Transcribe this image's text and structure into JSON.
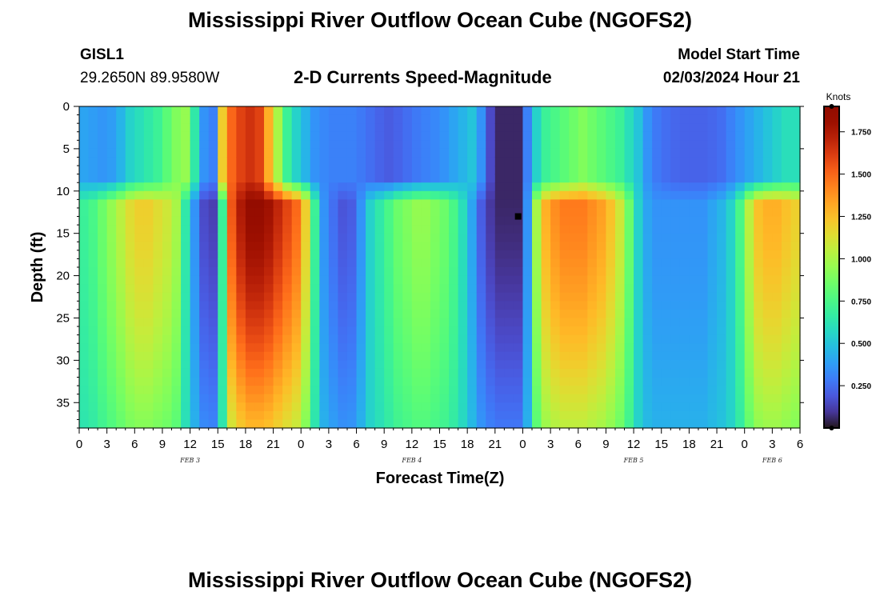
{
  "header": {
    "title": "Mississippi River Outflow Ocean Cube (NGOFS2)",
    "station": "GISL1",
    "coords": "29.2650N  89.9580W",
    "subtitle": "2-D Currents Speed-Magnitude",
    "model_start_label": "Model Start Time",
    "model_start_value": "02/03/2024 Hour 21"
  },
  "footer": {
    "title": "Mississippi River Outflow Ocean Cube (NGOFS2)"
  },
  "chart_data": {
    "type": "heatmap",
    "xlabel": "Forecast Time(Z)",
    "ylabel": "Depth (ft)",
    "x_tick_labels": [
      "0",
      "3",
      "6",
      "9",
      "12",
      "15",
      "18",
      "21",
      "0",
      "3",
      "6",
      "9",
      "12",
      "15",
      "18",
      "21",
      "0",
      "3",
      "6",
      "9",
      "12",
      "15",
      "18",
      "21",
      "0",
      "3",
      "6"
    ],
    "x_range_hours": [
      0,
      78
    ],
    "day_labels": [
      {
        "text": "FEB 3",
        "hour": 12
      },
      {
        "text": "FEB 4",
        "hour": 36
      },
      {
        "text": "FEB 5",
        "hour": 60
      },
      {
        "text": "FEB 6",
        "hour": 75
      }
    ],
    "y_ticks": [
      0,
      5,
      10,
      15,
      20,
      25,
      30,
      35
    ],
    "ylim": [
      0,
      38
    ],
    "y_inverted": true,
    "colorbar": {
      "unit": "Knots",
      "range": [
        0,
        1.9
      ],
      "tick_labels": [
        "0.250",
        "0.500",
        "0.750",
        "1.000",
        "1.250",
        "1.500",
        "1.750"
      ],
      "ticks": [
        0.25,
        0.5,
        0.75,
        1.0,
        1.25,
        1.5,
        1.75
      ],
      "colormap": "turbo"
    },
    "time_bins_hours": 78,
    "depth_bins": 38,
    "surface_break_depth_ft": 10,
    "surface_speed_knots": [
      0.4,
      0.38,
      0.36,
      0.38,
      0.45,
      0.55,
      0.6,
      0.65,
      0.7,
      0.8,
      0.9,
      0.95,
      0.65,
      0.35,
      0.3,
      1.2,
      1.5,
      1.6,
      1.65,
      1.6,
      1.3,
      1.0,
      0.7,
      0.55,
      0.45,
      0.35,
      0.32,
      0.3,
      0.3,
      0.3,
      0.28,
      0.25,
      0.22,
      0.2,
      0.22,
      0.25,
      0.28,
      0.3,
      0.32,
      0.35,
      0.4,
      0.45,
      0.5,
      0.35,
      0.15,
      0.05,
      0.05,
      0.05,
      0.3,
      0.55,
      0.7,
      0.75,
      0.8,
      0.85,
      0.9,
      0.85,
      0.8,
      0.75,
      0.7,
      0.6,
      0.5,
      0.35,
      0.28,
      0.25,
      0.23,
      0.22,
      0.22,
      0.22,
      0.23,
      0.25,
      0.3,
      0.35,
      0.4,
      0.45,
      0.5,
      0.55,
      0.6,
      0.6
    ],
    "deep_speed_knots": [
      0.7,
      0.75,
      0.85,
      0.95,
      1.05,
      1.15,
      1.2,
      1.2,
      1.15,
      1.1,
      1.0,
      0.65,
      0.35,
      0.15,
      0.12,
      0.7,
      1.55,
      1.75,
      1.85,
      1.85,
      1.8,
      1.7,
      1.6,
      1.5,
      1.2,
      0.7,
      0.35,
      0.25,
      0.18,
      0.2,
      0.35,
      0.55,
      0.65,
      0.75,
      0.85,
      0.9,
      0.95,
      0.95,
      0.9,
      0.85,
      0.75,
      0.6,
      0.4,
      0.2,
      0.1,
      0.05,
      0.05,
      0.05,
      0.35,
      1.0,
      1.3,
      1.4,
      1.45,
      1.45,
      1.45,
      1.4,
      1.35,
      1.25,
      1.1,
      0.85,
      0.55,
      0.4,
      0.35,
      0.35,
      0.35,
      0.35,
      0.35,
      0.35,
      0.4,
      0.45,
      0.55,
      0.75,
      1.05,
      1.25,
      1.3,
      1.3,
      1.25,
      1.2
    ],
    "markers": [
      {
        "hour": 47.5,
        "depth_ft": 13.0
      }
    ]
  }
}
